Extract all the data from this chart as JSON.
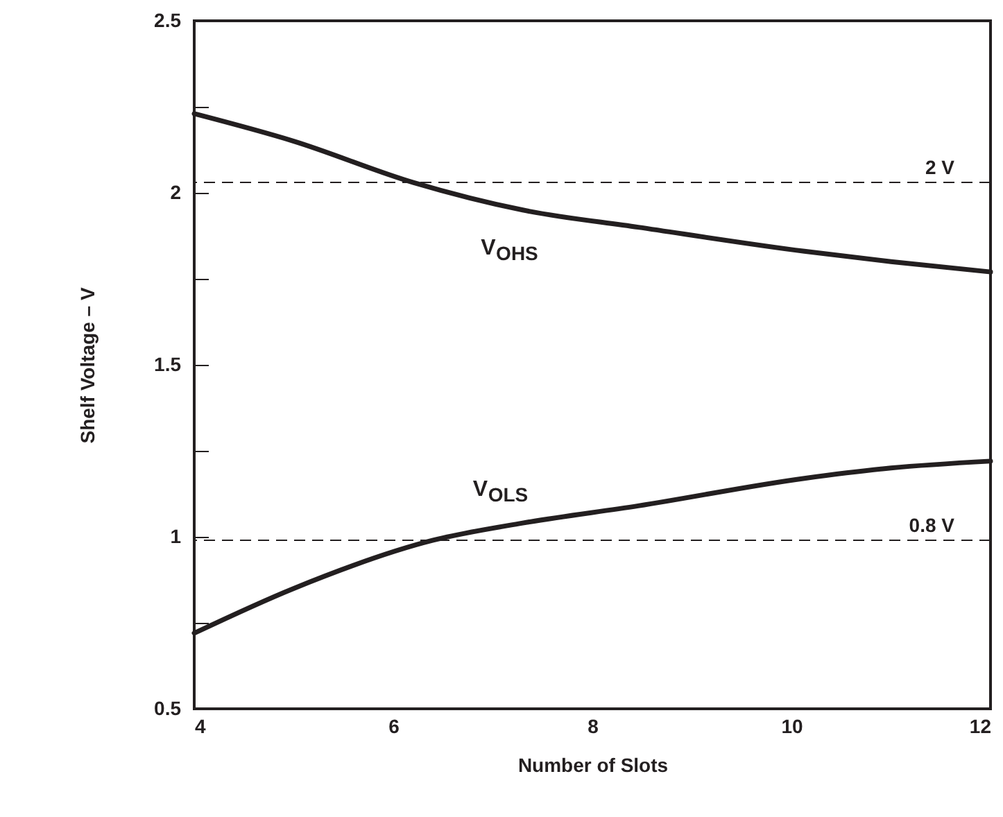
{
  "chart_data": {
    "type": "line",
    "xlabel": "Number of Slots",
    "ylabel": "Shelf Voltage – V",
    "x": [
      4,
      5,
      6.2,
      7.3,
      8.46,
      10.13,
      11,
      12
    ],
    "series": [
      {
        "color": "#231f20",
        "values": [
          2.23,
          2.15,
          2.03,
          1.95,
          1.9,
          1.83,
          1.8,
          1.77
        ]
      },
      {
        "color": "#231f20",
        "x": [
          4,
          5,
          6.4,
          7.3,
          8.46,
          10.13,
          11,
          12
        ],
        "values": [
          0.72,
          0.85,
          0.99,
          1.04,
          1.09,
          1.17,
          1.2,
          1.22
        ]
      }
    ],
    "xlim": [
      4,
      12
    ],
    "xticks": [
      4,
      6,
      8,
      10,
      12
    ],
    "ylim": [
      0.5,
      2.5
    ],
    "yticks": [
      0.5,
      {
        "value": 0.75,
        "label": null
      },
      1,
      {
        "value": 1.25,
        "label": null
      },
      1.5,
      {
        "value": 1.75,
        "label": null
      },
      2,
      {
        "value": 2.25,
        "label": null
      },
      2.5
    ],
    "ref_lines": [
      {
        "axis": "y",
        "value": 2.03,
        "label": "2 V",
        "line_style": "dashed"
      },
      {
        "axis": "y",
        "value": 0.99,
        "label": "0.8 V",
        "line_style": "dashed"
      }
    ],
    "annotations": [
      "V$_{OHS}$",
      "V$_{OLS}$"
    ],
    "grid": false,
    "marker": "none",
    "line_style": "solid"
  }
}
